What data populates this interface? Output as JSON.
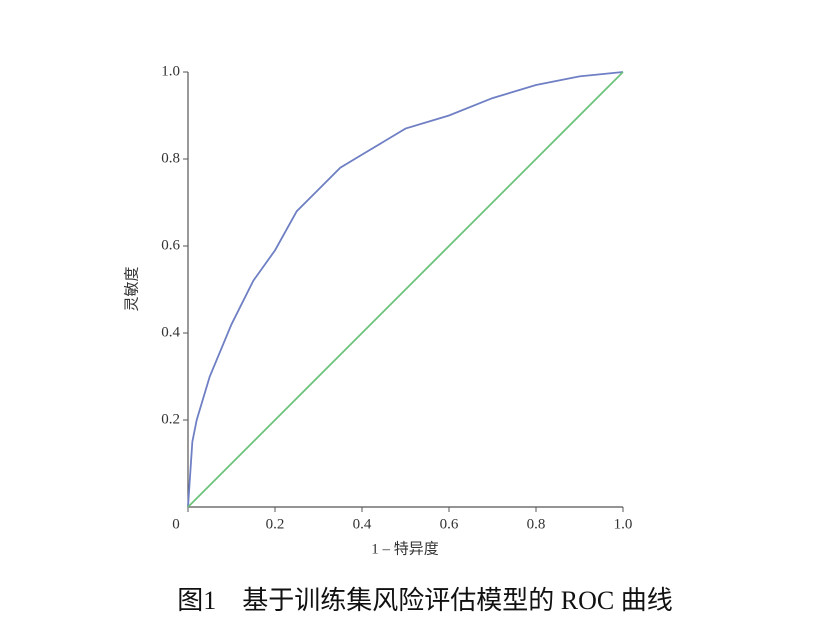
{
  "chart_data": {
    "type": "line",
    "x_label": "1 – 特异度",
    "y_label": "灵敏度",
    "caption": "图1　基于训练集风险评估模型的 ROC 曲线",
    "xlim": [
      0,
      1
    ],
    "ylim": [
      0,
      1
    ],
    "xticks": [
      0,
      0.2,
      0.4,
      0.6,
      0.8,
      {
        "value": 1,
        "label": "1.0"
      }
    ],
    "yticks": [
      0.2,
      0.4,
      0.6,
      0.8,
      {
        "value": 1,
        "label": "1.0"
      }
    ],
    "series": [
      {
        "color": "#6f7fc4",
        "x": [
          0,
          0.01,
          0.02,
          0.05,
          0.1,
          0.15,
          0.2,
          0.25,
          0.3,
          0.35,
          0.4,
          0.5,
          0.6,
          0.7,
          0.8,
          0.9,
          1
        ],
        "values": [
          0,
          0.15,
          0.2,
          0.3,
          0.42,
          0.52,
          0.59,
          0.68,
          0.73,
          0.78,
          0.81,
          0.87,
          0.9,
          0.94,
          0.97,
          0.99,
          1
        ]
      },
      {
        "color": "#6cc27a",
        "x": [
          0,
          1
        ],
        "values": [
          0,
          1
        ]
      }
    ]
  }
}
